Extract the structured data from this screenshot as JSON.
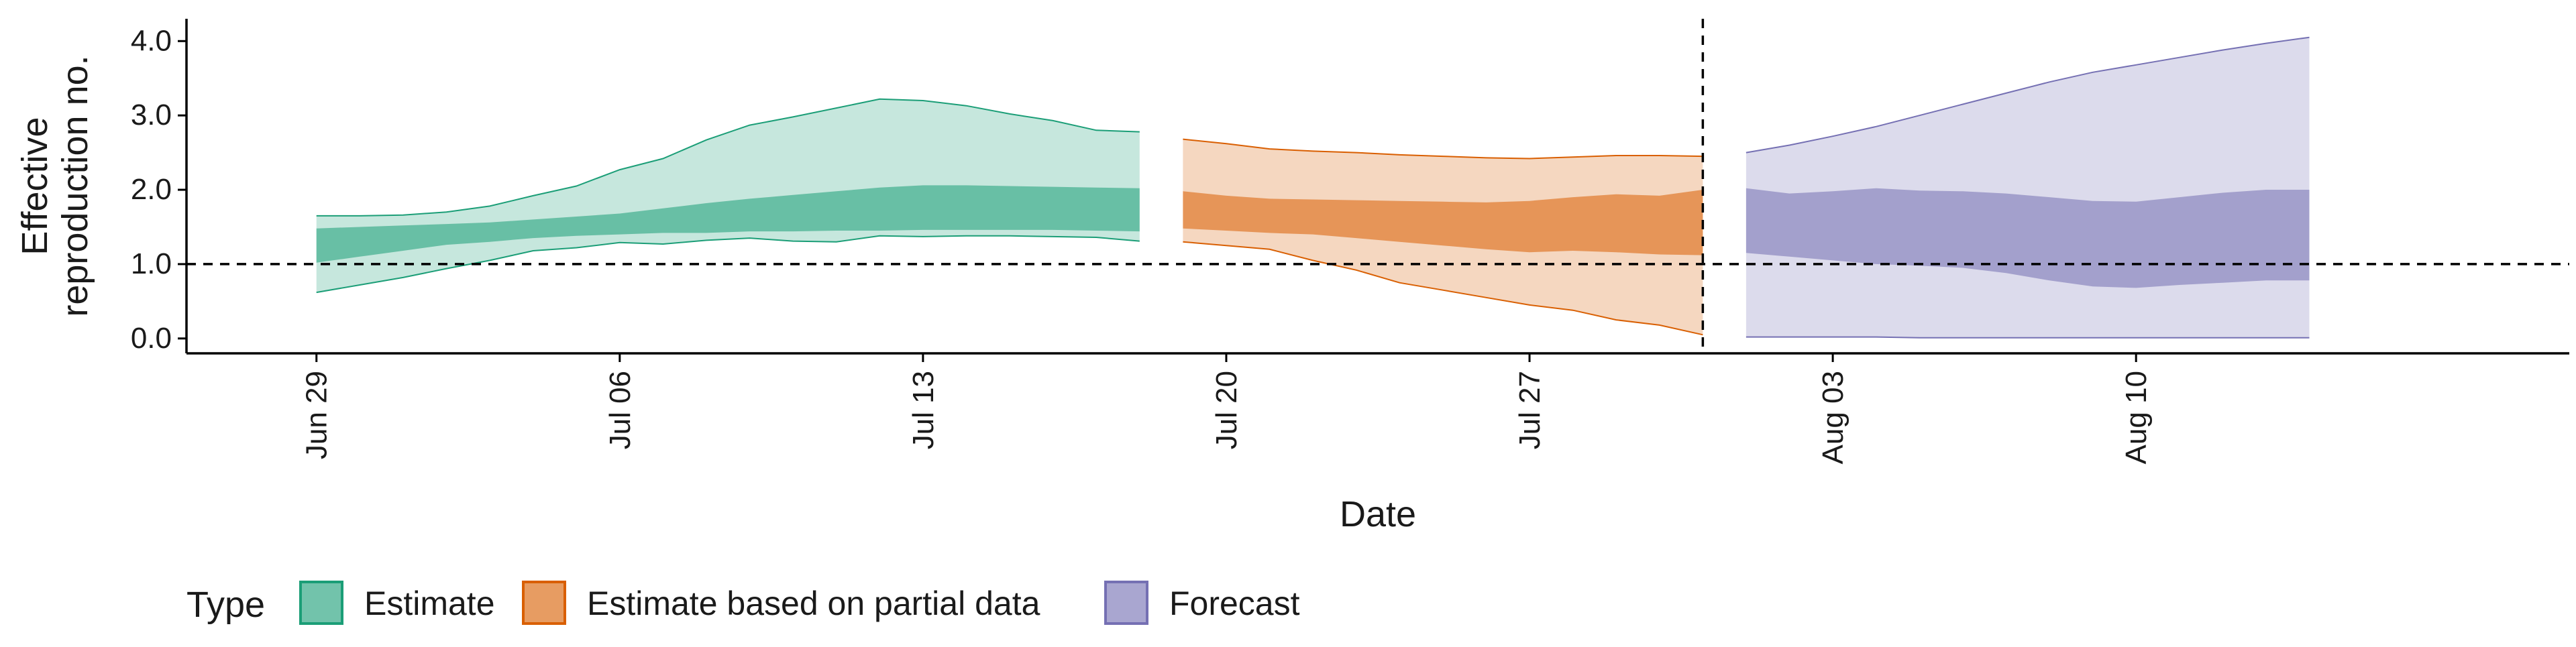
{
  "chart_data": {
    "type": "area",
    "xlabel": "Date",
    "ylabel": [
      "Effective",
      "reproduction no."
    ],
    "x_domain": [
      "2020-06-26",
      "2020-08-20"
    ],
    "y_domain": [
      -0.2,
      4.3
    ],
    "y_ticks": [
      {
        "value": 0,
        "label": "0.0"
      },
      {
        "value": 1,
        "label": "1.0"
      },
      {
        "value": 2,
        "label": "2.0"
      },
      {
        "value": 3,
        "label": "3.0"
      },
      {
        "value": 4,
        "label": "4.0"
      }
    ],
    "x_ticks": [
      {
        "date": "2020-06-29",
        "label": "Jun 29"
      },
      {
        "date": "2020-07-06",
        "label": "Jul 06"
      },
      {
        "date": "2020-07-13",
        "label": "Jul 13"
      },
      {
        "date": "2020-07-20",
        "label": "Jul 20"
      },
      {
        "date": "2020-07-27",
        "label": "Jul 27"
      },
      {
        "date": "2020-08-03",
        "label": "Aug 03"
      },
      {
        "date": "2020-08-10",
        "label": "Aug 10"
      }
    ],
    "reference_hline": 1.0,
    "reference_vline": "2020-07-31",
    "legend": {
      "title": "Type",
      "position": "bottom-left"
    },
    "series": [
      {
        "name": "Estimate",
        "color": "#1b9e77",
        "dates": [
          "2020-06-29",
          "2020-06-30",
          "2020-07-01",
          "2020-07-02",
          "2020-07-03",
          "2020-07-04",
          "2020-07-05",
          "2020-07-06",
          "2020-07-07",
          "2020-07-08",
          "2020-07-09",
          "2020-07-10",
          "2020-07-11",
          "2020-07-12",
          "2020-07-13",
          "2020-07-14",
          "2020-07-15",
          "2020-07-16",
          "2020-07-17",
          "2020-07-18"
        ],
        "lower90": [
          0.62,
          0.72,
          0.82,
          0.94,
          1.05,
          1.18,
          1.22,
          1.29,
          1.27,
          1.32,
          1.35,
          1.31,
          1.3,
          1.38,
          1.37,
          1.38,
          1.38,
          1.37,
          1.36,
          1.31
        ],
        "upper90": [
          1.65,
          1.65,
          1.66,
          1.7,
          1.78,
          1.92,
          2.05,
          2.27,
          2.42,
          2.67,
          2.87,
          2.98,
          3.1,
          3.22,
          3.2,
          3.13,
          3.02,
          2.93,
          2.8,
          2.78
        ],
        "lower50": [
          1.02,
          1.1,
          1.18,
          1.26,
          1.3,
          1.35,
          1.38,
          1.4,
          1.42,
          1.42,
          1.44,
          1.44,
          1.45,
          1.45,
          1.46,
          1.46,
          1.46,
          1.46,
          1.45,
          1.44
        ],
        "upper50": [
          1.48,
          1.5,
          1.52,
          1.54,
          1.56,
          1.6,
          1.64,
          1.68,
          1.75,
          1.82,
          1.88,
          1.93,
          1.98,
          2.03,
          2.06,
          2.06,
          2.05,
          2.04,
          2.03,
          2.02
        ]
      },
      {
        "name": "Estimate based on partial data",
        "color": "#d95f02",
        "dates": [
          "2020-07-19",
          "2020-07-20",
          "2020-07-21",
          "2020-07-22",
          "2020-07-23",
          "2020-07-24",
          "2020-07-25",
          "2020-07-26",
          "2020-07-27",
          "2020-07-28",
          "2020-07-29",
          "2020-07-30",
          "2020-07-31"
        ],
        "lower90": [
          1.3,
          1.25,
          1.2,
          1.05,
          0.92,
          0.75,
          0.65,
          0.55,
          0.45,
          0.38,
          0.25,
          0.18,
          0.05
        ],
        "upper90": [
          2.68,
          2.62,
          2.55,
          2.52,
          2.5,
          2.47,
          2.45,
          2.43,
          2.42,
          2.44,
          2.46,
          2.46,
          2.45
        ],
        "lower50": [
          1.48,
          1.45,
          1.42,
          1.4,
          1.35,
          1.3,
          1.25,
          1.2,
          1.16,
          1.18,
          1.16,
          1.13,
          1.12
        ],
        "upper50": [
          1.98,
          1.92,
          1.88,
          1.87,
          1.86,
          1.85,
          1.84,
          1.83,
          1.85,
          1.9,
          1.94,
          1.92,
          2.0
        ]
      },
      {
        "name": "Forecast",
        "color": "#7570b3",
        "dates": [
          "2020-08-01",
          "2020-08-02",
          "2020-08-03",
          "2020-08-04",
          "2020-08-05",
          "2020-08-06",
          "2020-08-07",
          "2020-08-08",
          "2020-08-09",
          "2020-08-10",
          "2020-08-11",
          "2020-08-12",
          "2020-08-13",
          "2020-08-14"
        ],
        "lower90": [
          0.02,
          0.02,
          0.02,
          0.02,
          0.01,
          0.01,
          0.01,
          0.01,
          0.01,
          0.01,
          0.01,
          0.01,
          0.01,
          0.01
        ],
        "upper90": [
          2.5,
          2.6,
          2.72,
          2.85,
          3.0,
          3.15,
          3.3,
          3.45,
          3.58,
          3.68,
          3.78,
          3.88,
          3.97,
          4.05
        ],
        "lower50": [
          1.15,
          1.1,
          1.05,
          1.0,
          0.98,
          0.95,
          0.88,
          0.78,
          0.7,
          0.68,
          0.72,
          0.75,
          0.78,
          0.78
        ],
        "upper50": [
          2.02,
          1.95,
          1.98,
          2.02,
          1.99,
          1.98,
          1.95,
          1.9,
          1.85,
          1.84,
          1.9,
          1.96,
          2.0,
          2.0
        ]
      }
    ]
  }
}
